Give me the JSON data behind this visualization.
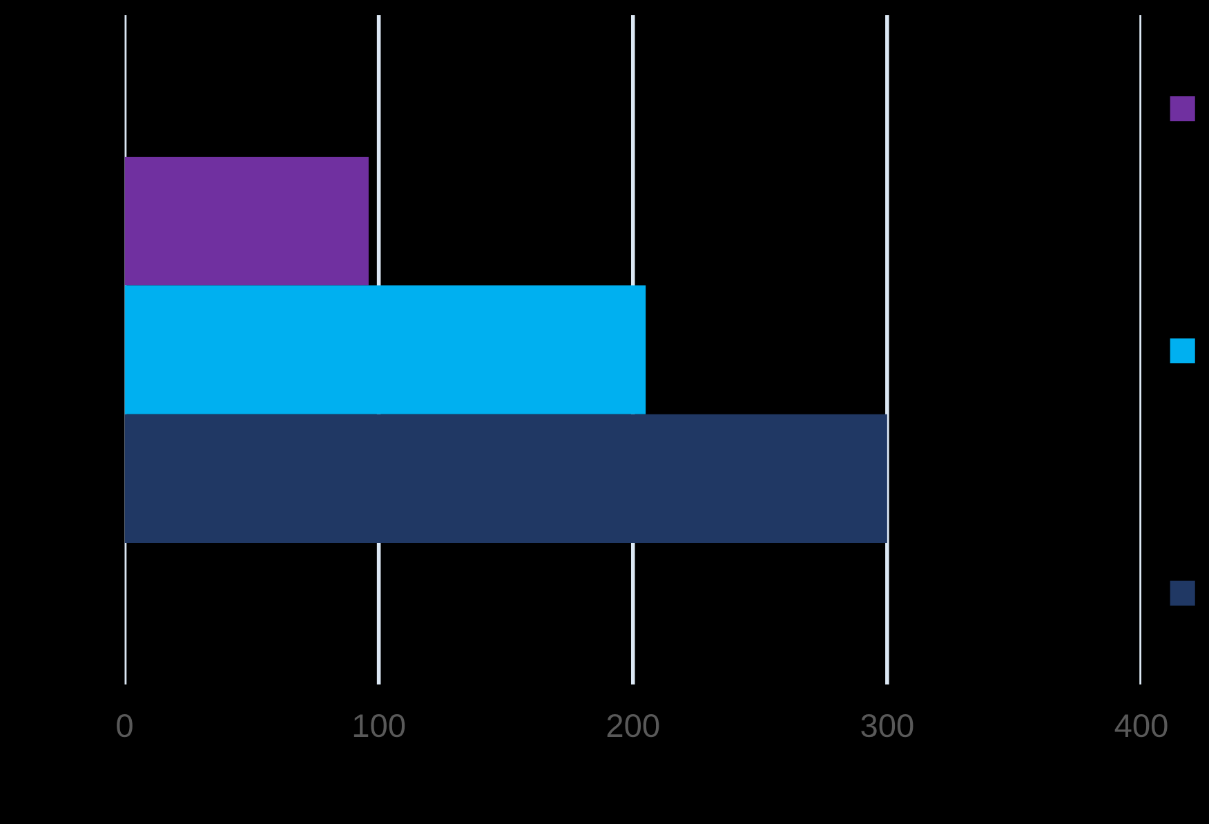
{
  "chart_data": {
    "type": "bar",
    "orientation": "horizontal",
    "categories": [
      null
    ],
    "series": [
      {
        "color": "#7030a0",
        "values": [
          96
        ]
      },
      {
        "color": "#00b0f0",
        "values": [
          205
        ]
      },
      {
        "color": "#203864",
        "values": [
          300
        ]
      }
    ],
    "xlim": [
      0,
      400
    ],
    "xticks": [
      0,
      100,
      200,
      300,
      400
    ],
    "grid": "x",
    "tick_labels": "x"
  }
}
